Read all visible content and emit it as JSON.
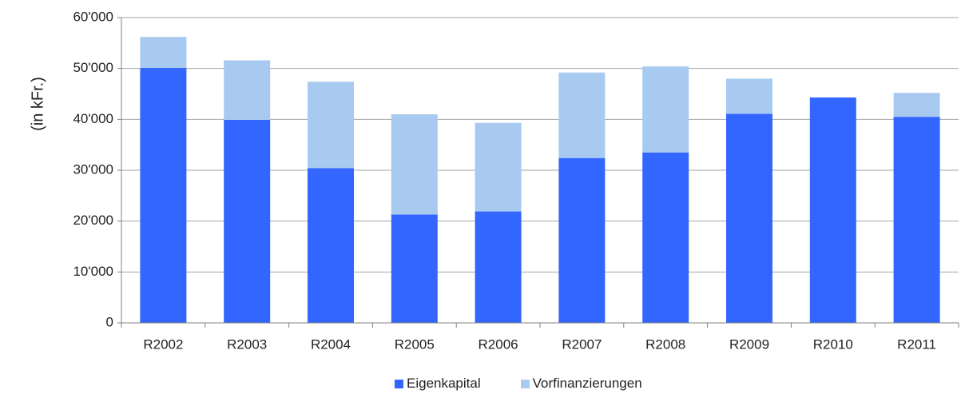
{
  "chart_data": {
    "type": "bar",
    "stacked": true,
    "title": "",
    "xlabel": "",
    "ylabel": "(in kFr.)",
    "categories": [
      "R2002",
      "R2003",
      "R2004",
      "R2005",
      "R2006",
      "R2007",
      "R2008",
      "R2009",
      "R2010",
      "R2011"
    ],
    "series": [
      {
        "name": "Eigenkapital",
        "color": "#3366ff",
        "values": [
          50100,
          39900,
          30400,
          21300,
          21900,
          32400,
          33500,
          41100,
          44300,
          40500
        ]
      },
      {
        "name": "Vorfinanzierungen",
        "color": "#a8caf0",
        "values": [
          6100,
          11700,
          17000,
          19700,
          17400,
          16800,
          16900,
          6900,
          0,
          4700
        ]
      }
    ],
    "ylim": [
      0,
      60000
    ],
    "yticks": [
      0,
      10000,
      20000,
      30000,
      40000,
      50000,
      60000
    ],
    "ytick_labels": [
      "0",
      "10'000",
      "20'000",
      "30'000",
      "40'000",
      "50'000",
      "60'000"
    ],
    "grid": true,
    "legend": "bottom"
  }
}
